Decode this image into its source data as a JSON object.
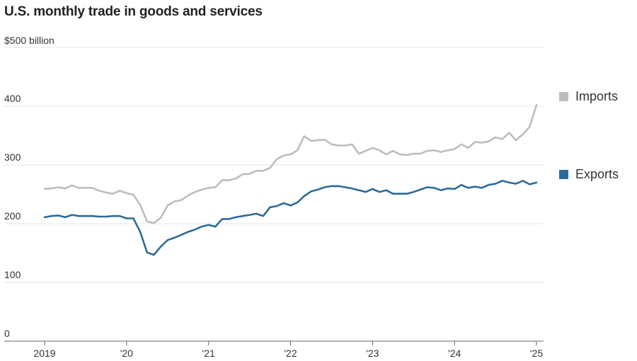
{
  "chart_data": {
    "type": "line",
    "title": "U.S. monthly trade in goods and services",
    "ylabel_unit": "$500 billion",
    "ylim": [
      0,
      500
    ],
    "yticks": [
      0,
      100,
      200,
      300,
      400
    ],
    "ytick_labels": [
      "0",
      "100",
      "200",
      "300",
      "400"
    ],
    "xlim": [
      "2019-01",
      "2025-01"
    ],
    "xticks": [
      "2019-01",
      "2020-01",
      "2021-01",
      "2022-01",
      "2023-01",
      "2024-01",
      "2025-01"
    ],
    "xtick_labels": [
      "2019",
      "'20",
      "'21",
      "'22",
      "'23",
      "'24",
      "'25"
    ],
    "grid": true,
    "legend_placement": "right",
    "x": [
      "2019-01",
      "2019-02",
      "2019-03",
      "2019-04",
      "2019-05",
      "2019-06",
      "2019-07",
      "2019-08",
      "2019-09",
      "2019-10",
      "2019-11",
      "2019-12",
      "2020-01",
      "2020-02",
      "2020-03",
      "2020-04",
      "2020-05",
      "2020-06",
      "2020-07",
      "2020-08",
      "2020-09",
      "2020-10",
      "2020-11",
      "2020-12",
      "2021-01",
      "2021-02",
      "2021-03",
      "2021-04",
      "2021-05",
      "2021-06",
      "2021-07",
      "2021-08",
      "2021-09",
      "2021-10",
      "2021-11",
      "2021-12",
      "2022-01",
      "2022-02",
      "2022-03",
      "2022-04",
      "2022-05",
      "2022-06",
      "2022-07",
      "2022-08",
      "2022-09",
      "2022-10",
      "2022-11",
      "2022-12",
      "2023-01",
      "2023-02",
      "2023-03",
      "2023-04",
      "2023-05",
      "2023-06",
      "2023-07",
      "2023-08",
      "2023-09",
      "2023-10",
      "2023-11",
      "2023-12",
      "2024-01",
      "2024-02",
      "2024-03",
      "2024-04",
      "2024-05",
      "2024-06",
      "2024-07",
      "2024-08",
      "2024-09",
      "2024-10",
      "2024-11",
      "2024-12",
      "2025-01"
    ],
    "series": [
      {
        "name": "Imports",
        "color": "#bdbdbd",
        "values": [
          259,
          260,
          262,
          260,
          265,
          261,
          261,
          261,
          256,
          253,
          251,
          256,
          252,
          249,
          232,
          204,
          201,
          210,
          231,
          238,
          240,
          248,
          254,
          258,
          261,
          262,
          274,
          274,
          277,
          284,
          285,
          290,
          290,
          295,
          310,
          316,
          318,
          325,
          349,
          341,
          342,
          343,
          335,
          333,
          333,
          335,
          319,
          324,
          329,
          325,
          318,
          324,
          318,
          317,
          319,
          319,
          324,
          325,
          322,
          325,
          327,
          335,
          329,
          339,
          338,
          340,
          347,
          344,
          355,
          342,
          352,
          365,
          402
        ]
      },
      {
        "name": "Exports",
        "color": "#2b6b99",
        "values": [
          211,
          213,
          214,
          211,
          215,
          213,
          213,
          213,
          212,
          212,
          213,
          213,
          209,
          209,
          186,
          151,
          147,
          161,
          172,
          176,
          181,
          186,
          190,
          195,
          198,
          195,
          208,
          208,
          211,
          213,
          215,
          217,
          213,
          228,
          230,
          235,
          231,
          236,
          247,
          255,
          258,
          262,
          264,
          264,
          262,
          260,
          257,
          254,
          259,
          254,
          257,
          251,
          251,
          251,
          254,
          258,
          262,
          261,
          257,
          260,
          259,
          266,
          261,
          263,
          261,
          266,
          268,
          273,
          270,
          268,
          273,
          267,
          270
        ]
      }
    ]
  }
}
